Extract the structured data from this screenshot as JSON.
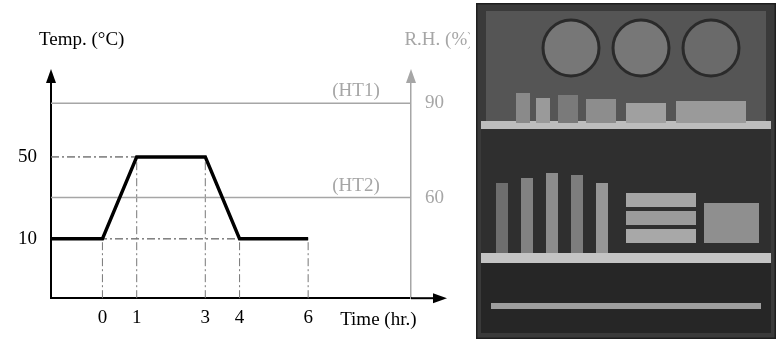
{
  "chart_data": {
    "type": "line",
    "x_label": "Time (hr.)",
    "y_label": "Temp. (°C)",
    "y2_label": "R.H. (%)",
    "xlim": [
      -1.5,
      9
    ],
    "xticks": [
      0,
      1,
      3,
      4,
      6
    ],
    "ylim": [
      -19,
      90
    ],
    "yticks": [
      10,
      50
    ],
    "y2lim": [
      28,
      99
    ],
    "y2ticks": [
      60,
      90
    ],
    "grid": false,
    "series": [
      {
        "color": "#000000",
        "x": [
          -1.5,
          0,
          1,
          3,
          4,
          6
        ],
        "values": [
          10,
          10,
          50,
          50,
          10,
          10
        ]
      },
      {
        "name": "(HT1)",
        "color": "#a6a6a6",
        "axis": "y2",
        "x": [
          -1.5,
          9
        ],
        "values": [
          90,
          90
        ]
      },
      {
        "name": "(HT2)",
        "color": "#a6a6a6",
        "axis": "y2",
        "x": [
          -1.5,
          9
        ],
        "values": [
          60,
          60
        ]
      }
    ]
  }
}
